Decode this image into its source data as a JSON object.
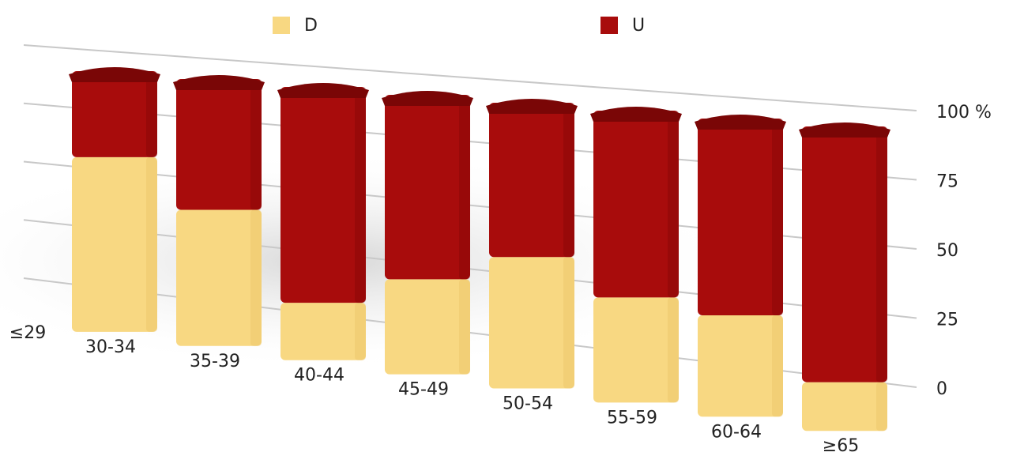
{
  "chart_data": {
    "type": "bar",
    "stacked": true,
    "categories": [
      "≤29",
      "30-34",
      "35-39",
      "40-44",
      "45-49",
      "50-54",
      "55-59",
      "60-64",
      "≥65"
    ],
    "series": [
      {
        "name": "D",
        "color": "#f8d882",
        "values": [
          null,
          67,
          51,
          21,
          34,
          46,
          36,
          34,
          16
        ]
      },
      {
        "name": "U",
        "color": "#a80c0c",
        "values": [
          null,
          33,
          49,
          79,
          66,
          54,
          64,
          66,
          84
        ]
      }
    ],
    "ylim": [
      0,
      100
    ],
    "yticks": [
      0,
      25,
      50,
      75,
      {
        "value": 100,
        "label": "100 %"
      }
    ],
    "grid": true
  }
}
